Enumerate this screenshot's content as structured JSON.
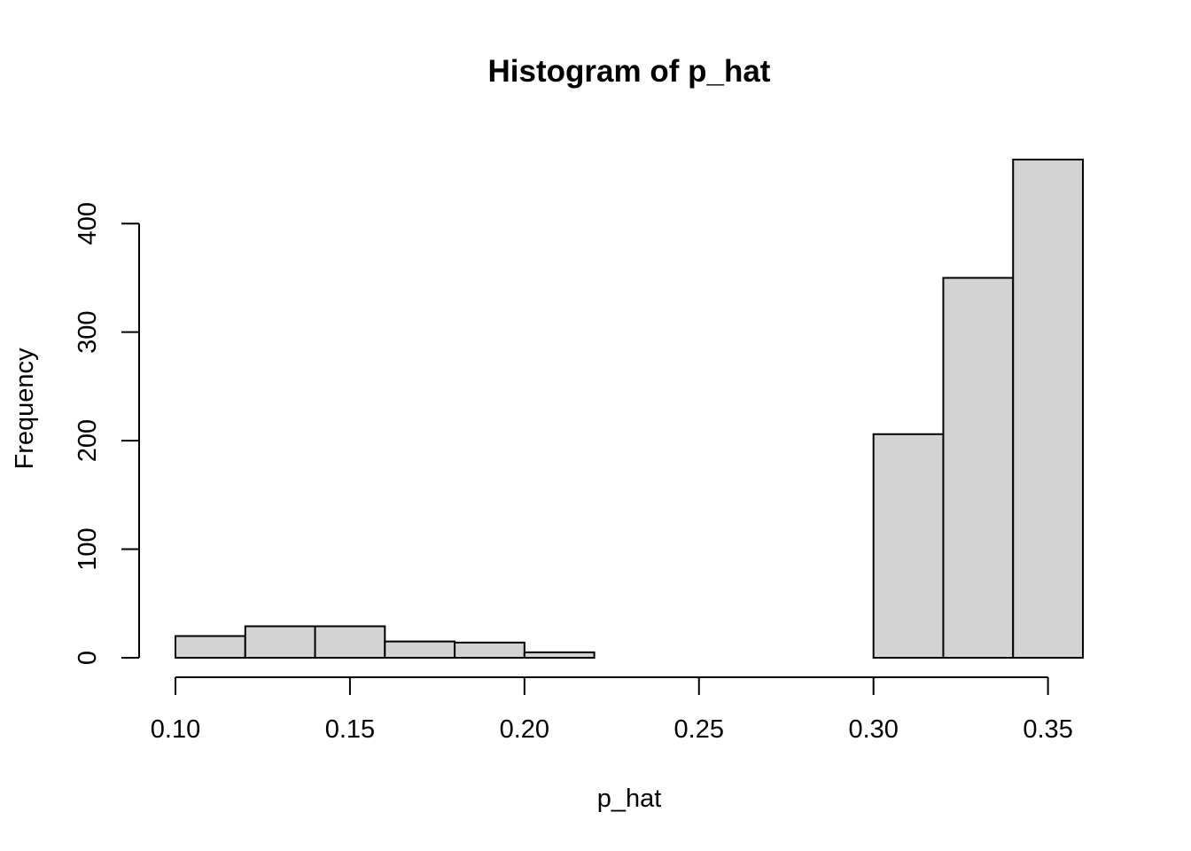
{
  "chart_data": {
    "type": "bar",
    "title": "Histogram of p_hat",
    "xlabel": "p_hat",
    "ylabel": "Frequency",
    "bins": [
      {
        "start": 0.1,
        "end": 0.12,
        "count": 20
      },
      {
        "start": 0.12,
        "end": 0.14,
        "count": 29
      },
      {
        "start": 0.14,
        "end": 0.16,
        "count": 29
      },
      {
        "start": 0.16,
        "end": 0.18,
        "count": 15
      },
      {
        "start": 0.18,
        "end": 0.2,
        "count": 14
      },
      {
        "start": 0.2,
        "end": 0.22,
        "count": 5
      },
      {
        "start": 0.22,
        "end": 0.24,
        "count": 0
      },
      {
        "start": 0.24,
        "end": 0.26,
        "count": 0
      },
      {
        "start": 0.26,
        "end": 0.28,
        "count": 0
      },
      {
        "start": 0.28,
        "end": 0.3,
        "count": 0
      },
      {
        "start": 0.3,
        "end": 0.32,
        "count": 206
      },
      {
        "start": 0.32,
        "end": 0.34,
        "count": 350
      },
      {
        "start": 0.34,
        "end": 0.36,
        "count": 459
      }
    ],
    "x_ticks": [
      "0.10",
      "0.15",
      "0.20",
      "0.25",
      "0.30",
      "0.35"
    ],
    "y_ticks": [
      "0",
      "100",
      "200",
      "300",
      "400"
    ],
    "xlim": [
      0.1,
      0.36
    ],
    "ylim": [
      0,
      459
    ],
    "grid": false,
    "bar_color": "#d3d3d3",
    "edge_color": "#000000"
  }
}
